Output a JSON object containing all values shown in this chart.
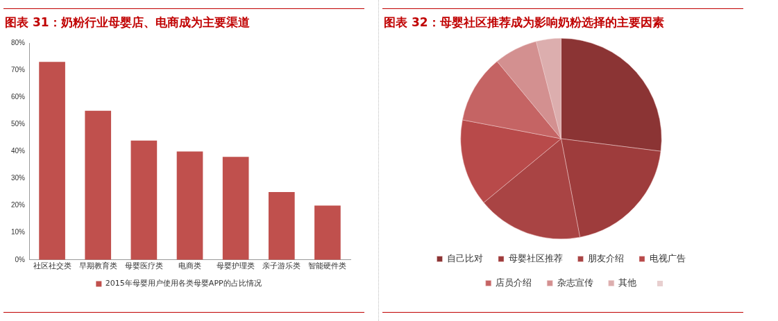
{
  "chart_data": [
    {
      "type": "bar",
      "title": "图表 31：奶粉行业母婴店、电商成为主要渠道",
      "categories": [
        "社区社交类",
        "早期教育类",
        "母婴医疗类",
        "电商类",
        "母婴护理类",
        "亲子游乐类",
        "智能硬件类"
      ],
      "series": [
        {
          "name": "2015年母婴用户使用各类母婴APP的占比情况",
          "color": "#c0504d",
          "values": [
            73,
            55,
            44,
            40,
            38,
            25,
            20
          ]
        }
      ],
      "ylim": [
        0,
        80
      ],
      "yticks": [
        {
          "value": 0,
          "label": "0%"
        },
        {
          "value": 10,
          "label": "10%"
        },
        {
          "value": 20,
          "label": "20%"
        },
        {
          "value": 30,
          "label": "30%"
        },
        {
          "value": 40,
          "label": "40%"
        },
        {
          "value": 50,
          "label": "50%"
        },
        {
          "value": 60,
          "label": "60%"
        },
        {
          "value": 70,
          "label": "70%"
        },
        {
          "value": 80,
          "label": "80%"
        }
      ],
      "grid": false,
      "legend": "bottom"
    },
    {
      "type": "pie",
      "title": "图表 32：母婴社区推荐成为影响奶粉选择的主要因素",
      "categories": [
        "自己比对",
        "母婴社区推荐",
        "朋友介绍",
        "电视广告",
        "店员介绍",
        "杂志宣传",
        "其他"
      ],
      "values": [
        27,
        20,
        17,
        14,
        11,
        7,
        4
      ],
      "colors": [
        "#8b3434",
        "#9e3c3c",
        "#a94444",
        "#b84a4a",
        "#c56464",
        "#d39090",
        "#dcaeae"
      ],
      "legend": "bottom"
    }
  ]
}
